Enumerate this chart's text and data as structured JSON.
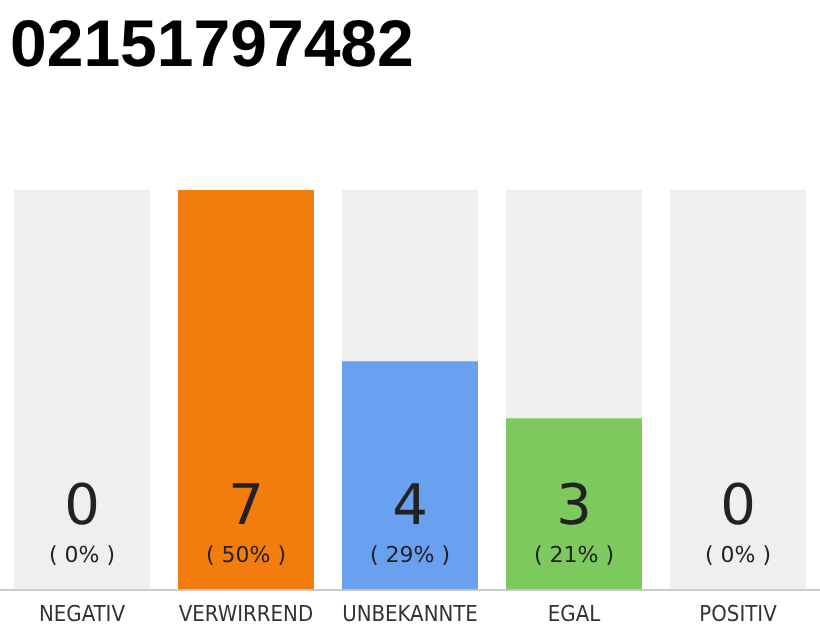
{
  "chart_data": {
    "type": "bar",
    "title": "02151797482",
    "categories": [
      "NEGATIV",
      "VERWIRREND",
      "UNBEKANNTE",
      "EGAL",
      "POSITIV"
    ],
    "series": [
      {
        "colors": [
          "#9e9e9e",
          "#f27d0c",
          "#6aa0f0",
          "#7dc95e",
          "#9e9e9e"
        ],
        "values": [
          0,
          7,
          4,
          3,
          0
        ],
        "value_labels": [
          null,
          "7",
          "4",
          "3",
          null
        ]
      },
      {
        "color": "#efefef",
        "values": [
          7,
          0,
          3,
          4,
          7
        ]
      }
    ],
    "stacked": true,
    "ylim": [
      0,
      7
    ],
    "tick_labels": "x",
    "grid": false,
    "legend": false,
    "annotations": [
      "( 0% )",
      "( 50% )",
      "( 29% )",
      "( 21% )",
      "( 0% )",
      {
        "text": "0",
        "x": "NEGATIV",
        "y": 0
      },
      {
        "text": "0",
        "x": "POSITIV",
        "y": 0
      }
    ]
  }
}
